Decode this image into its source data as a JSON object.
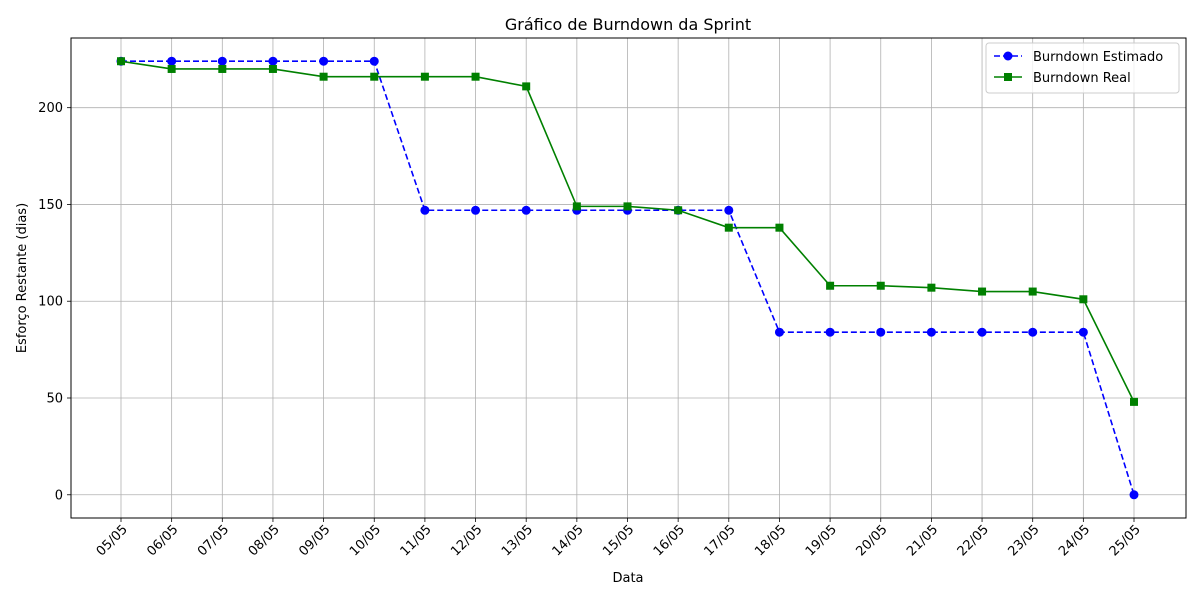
{
  "chart_data": {
    "type": "line",
    "title": "Gráfico de Burndown da Sprint",
    "xlabel": "Data",
    "ylabel": "Esforço Restante (dias)",
    "categories": [
      "05/05",
      "06/05",
      "07/05",
      "08/05",
      "09/05",
      "10/05",
      "11/05",
      "12/05",
      "13/05",
      "14/05",
      "15/05",
      "16/05",
      "17/05",
      "18/05",
      "19/05",
      "20/05",
      "21/05",
      "22/05",
      "23/05",
      "24/05",
      "25/05"
    ],
    "ylim": [
      -12,
      236
    ],
    "yticks": [
      0,
      50,
      100,
      150,
      200
    ],
    "grid": true,
    "legend_position": "top-right",
    "series": [
      {
        "name": "Burndown Estimado",
        "color": "#0000ff",
        "line_style": "dashed",
        "marker": "circle",
        "values": [
          224,
          224,
          224,
          224,
          224,
          224,
          147,
          147,
          147,
          147,
          147,
          147,
          147,
          84,
          84,
          84,
          84,
          84,
          84,
          84,
          0
        ]
      },
      {
        "name": "Burndown Real",
        "color": "#008000",
        "line_style": "solid",
        "marker": "square",
        "values": [
          224,
          220,
          220,
          220,
          216,
          216,
          216,
          216,
          211,
          149,
          149,
          147,
          138,
          138,
          108,
          108,
          107,
          105,
          105,
          101,
          48
        ]
      }
    ]
  }
}
